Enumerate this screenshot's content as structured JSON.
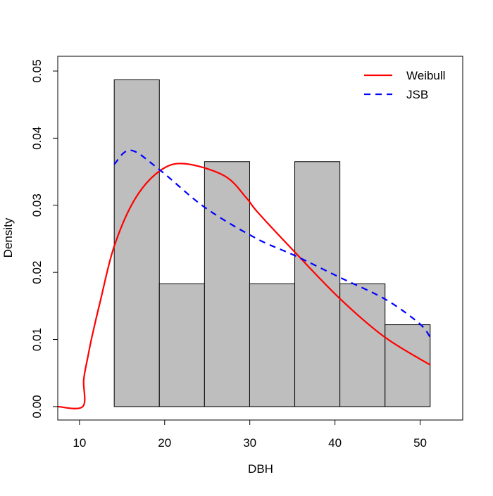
{
  "chart_data": {
    "type": "histogram",
    "title": "",
    "xlabel": "DBH",
    "ylabel": "Density",
    "xlim": [
      7.45,
      55.0
    ],
    "ylim": [
      -0.002,
      0.0522
    ],
    "grid": false,
    "legend_position": "top-right",
    "x_ticks": [
      10,
      20,
      30,
      40,
      50
    ],
    "x_tick_labels": [
      "10",
      "20",
      "30",
      "40",
      "50"
    ],
    "y_ticks": [
      0,
      0.01,
      0.02,
      0.03,
      0.04,
      0.05
    ],
    "y_tick_labels": [
      "0.00",
      "0.01",
      "0.02",
      "0.03",
      "0.04",
      "0.05"
    ],
    "bins": {
      "breaks": [
        14.08,
        19.38,
        24.68,
        29.98,
        35.28,
        40.58,
        45.88,
        51.18
      ],
      "density": [
        0.0487,
        0.0183,
        0.0365,
        0.0183,
        0.0365,
        0.0183,
        0.0122
      ],
      "fill": "#bebebe"
    },
    "series": [
      {
        "name": "Weibull",
        "color": "#ff0000",
        "style": "solid",
        "x": [
          7.45,
          10.39,
          10.5,
          11.0,
          11.5,
          12.5,
          14.08,
          16.5,
          19.4,
          22.3,
          27.0,
          29.6,
          30.9,
          35.3,
          40.65,
          45.9,
          51.2
        ],
        "y": [
          0,
          0,
          0.004,
          0.0075,
          0.0106,
          0.016,
          0.0239,
          0.0309,
          0.0351,
          0.0362,
          0.0344,
          0.0311,
          0.029,
          0.023,
          0.016,
          0.0103,
          0.0062
        ]
      },
      {
        "name": "JSB",
        "color": "#0000ff",
        "style": "dashed",
        "x": [
          14.08,
          16.0,
          19.4,
          24.7,
          30.7,
          35.3,
          40.65,
          45.9,
          49.9,
          51.2
        ],
        "y": [
          0.0361,
          0.0382,
          0.0353,
          0.0297,
          0.0251,
          0.0225,
          0.0192,
          0.016,
          0.0124,
          0.0103
        ]
      }
    ]
  }
}
